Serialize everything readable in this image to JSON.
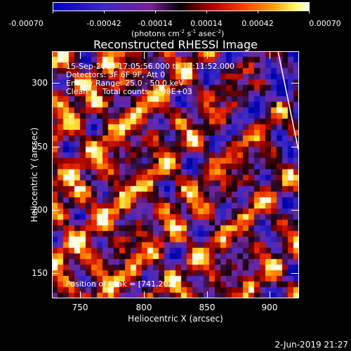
{
  "colorbar": {
    "tick_labels": [
      "-0.00070",
      "-0.00042",
      "-0.00014",
      "0.00014",
      "0.00042",
      "0.00070"
    ],
    "units_main": "(photons cm",
    "units_sup1": "-2",
    "units_mid1": " s",
    "units_sup2": "-1",
    "units_mid2": " asec",
    "units_sup3": "-2",
    "units_end": ")"
  },
  "title": "Reconstructed RHESSI Image",
  "annotations": {
    "time_range": "15-Sep-2014 17:05:56.000 to 17:11:52.000",
    "detectors": "Detectors: 3F 6F 9F, Att 0",
    "energy_range": "Energy Range: 25.0 - 50.0 keV",
    "clean_label": "Clean",
    "total_counts": "Total counts: 4.98E+03",
    "peak_position": "Position of Peak = [741,202]"
  },
  "axes": {
    "xlabel": "Heliocentric X (arcsec)",
    "ylabel": "Heliocentric Y (arcsec)",
    "x_ticks": [
      "750",
      "800",
      "850",
      "900"
    ],
    "y_ticks": [
      "300",
      "250",
      "200",
      "150"
    ],
    "x_range": [
      730,
      920
    ],
    "y_range": [
      132,
      322
    ]
  },
  "footer_date": "2-Jun-2019 21:27",
  "colors": {
    "background": "#000000",
    "text": "#ffffff",
    "limb_line": "#ffffff"
  }
}
